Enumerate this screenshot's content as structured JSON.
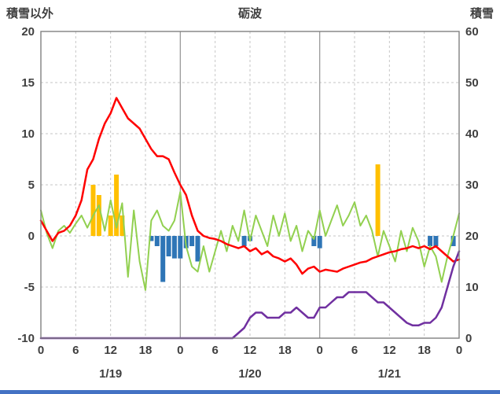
{
  "labels": {
    "left_axis_title": "積雪以外",
    "chart_title": "砺波",
    "right_axis_title": "積雪"
  },
  "colors": {
    "red_line": "#ff0000",
    "green_line": "#92d050",
    "purple_line": "#7030a0",
    "orange_bar": "#ffc000",
    "blue_bar": "#2e75b6",
    "grid": "#c6c6c6",
    "grid_day": "#9a9a9a",
    "border": "#808080",
    "text": "#3f3f3f",
    "bottom_bar": "#4472c4"
  },
  "chart_data": {
    "type": "line+bar composite, dual axis, 3-day hourly weather chart",
    "title": "砺波",
    "left_axis": {
      "title": "積雪以外",
      "range": [
        -10,
        20
      ],
      "ticks": [
        20,
        15,
        10,
        5,
        0,
        -5,
        -10
      ]
    },
    "right_axis": {
      "title": "積雪",
      "range": [
        0,
        60
      ],
      "ticks": [
        60,
        50,
        40,
        30,
        20,
        10,
        0
      ]
    },
    "x_axis": {
      "hours_total": 72,
      "tick_step_hours": 6,
      "tick_labels": [
        "0",
        "6",
        "12",
        "18",
        "0",
        "6",
        "12",
        "18",
        "0",
        "6",
        "12",
        "18",
        "0"
      ],
      "day_labels": [
        "1/19",
        "1/20",
        "1/21"
      ],
      "day_separator_hours": [
        24,
        48
      ]
    },
    "grid": {
      "horizontal_step": 5,
      "vertical_step_hours": 6,
      "style": "dashed"
    },
    "series": [
      {
        "name": "orange-bars",
        "type": "bar",
        "axis": "left",
        "color": "#ffc000",
        "points": [
          {
            "hour": 9,
            "value": 5
          },
          {
            "hour": 10,
            "value": 4
          },
          {
            "hour": 12,
            "value": 2
          },
          {
            "hour": 13,
            "value": 6
          },
          {
            "hour": 14,
            "value": 2
          },
          {
            "hour": 58,
            "value": 7
          }
        ]
      },
      {
        "name": "blue-bars",
        "type": "bar",
        "axis": "left",
        "color": "#2e75b6",
        "points": [
          {
            "hour": 19,
            "value": -0.5
          },
          {
            "hour": 20,
            "value": -1
          },
          {
            "hour": 21,
            "value": -4.5
          },
          {
            "hour": 22,
            "value": -2
          },
          {
            "hour": 23,
            "value": -2.2
          },
          {
            "hour": 24,
            "value": -2.2
          },
          {
            "hour": 25,
            "value": -1.2
          },
          {
            "hour": 26,
            "value": -1
          },
          {
            "hour": 27,
            "value": -2.5
          },
          {
            "hour": 35,
            "value": -1
          },
          {
            "hour": 36,
            "value": -0.5
          },
          {
            "hour": 47,
            "value": -1
          },
          {
            "hour": 48,
            "value": -1.2
          },
          {
            "hour": 67,
            "value": -1
          },
          {
            "hour": 68,
            "value": -1
          },
          {
            "hour": 71,
            "value": -1
          }
        ]
      },
      {
        "name": "green-line",
        "type": "line",
        "axis": "left",
        "color": "#92d050",
        "width": 2,
        "values": [
          2.5,
          0.3,
          -1.2,
          0.5,
          1,
          0.3,
          1.2,
          2,
          0.8,
          2,
          3,
          0.5,
          3.5,
          0.8,
          3.2,
          -4,
          2.5,
          -2.5,
          -5.3,
          1.5,
          2.5,
          1,
          0.5,
          1.5,
          4.3,
          -1,
          -3,
          -3.5,
          -1,
          -3.5,
          -1.5,
          0.5,
          -1.5,
          1,
          -0.5,
          2.5,
          -0.5,
          2,
          0.5,
          -1,
          2,
          0,
          2.2,
          -0.5,
          1,
          -1.5,
          0.5,
          -0.3,
          2.5,
          0,
          1.5,
          3,
          1,
          2,
          3.3,
          1,
          2,
          0.5,
          -2,
          0.5,
          -1,
          -2.5,
          0.5,
          -1.5,
          0.8,
          -0.5,
          -3,
          -1,
          -2,
          -4.5,
          -2,
          0,
          2.2
        ]
      },
      {
        "name": "red-line",
        "type": "line",
        "axis": "left",
        "color": "#ff0000",
        "width": 2.5,
        "values": [
          1.5,
          0.5,
          -0.5,
          0.3,
          0.5,
          1,
          2,
          3.5,
          6.5,
          7.5,
          9.5,
          11,
          12,
          13.5,
          12.5,
          11.5,
          11,
          10.5,
          9.5,
          8.5,
          7.8,
          7.8,
          7.5,
          6.2,
          5,
          4,
          2,
          0.5,
          0,
          -0.2,
          -0.3,
          -0.5,
          -0.8,
          -1,
          -1.2,
          -1,
          -1.5,
          -1.2,
          -1.8,
          -1.5,
          -2,
          -2.2,
          -2.5,
          -2.2,
          -2.8,
          -3.7,
          -3.2,
          -3,
          -3.5,
          -3.3,
          -3.4,
          -3.5,
          -3.2,
          -3,
          -2.8,
          -2.6,
          -2.5,
          -2.2,
          -2,
          -1.8,
          -1.6,
          -1.5,
          -1.3,
          -1.2,
          -1,
          -1.2,
          -1,
          -1.3,
          -1,
          -1.5,
          -2,
          -2.5,
          -2.3
        ]
      },
      {
        "name": "purple-line",
        "type": "line",
        "axis": "right",
        "color": "#7030a0",
        "width": 2.5,
        "values": [
          0,
          0,
          0,
          0,
          0,
          0,
          0,
          0,
          0,
          0,
          0,
          0,
          0,
          0,
          0,
          0,
          0,
          0,
          0,
          0,
          0,
          0,
          0,
          0,
          0,
          0,
          0,
          0,
          0,
          0,
          0,
          0,
          0,
          0,
          1,
          2,
          4,
          5,
          5,
          4,
          4,
          4,
          5,
          5,
          6,
          5,
          4,
          4,
          6,
          6,
          7,
          8,
          8,
          9,
          9,
          9,
          9,
          8,
          7,
          7,
          6,
          5,
          4,
          3,
          2.5,
          2.5,
          3,
          3,
          4,
          6,
          10,
          14,
          17
        ]
      }
    ]
  }
}
